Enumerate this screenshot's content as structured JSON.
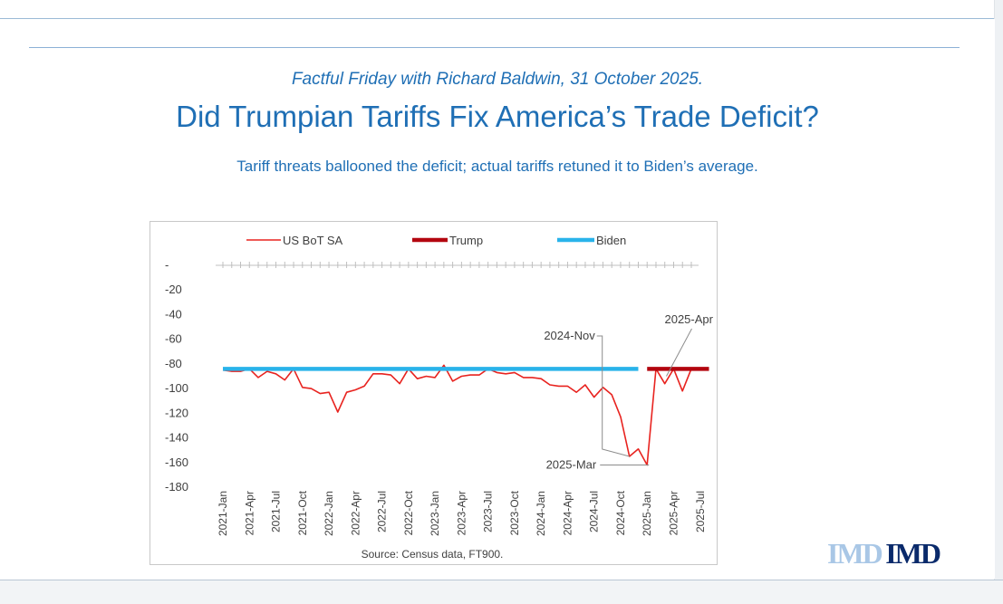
{
  "header": {
    "subtitle": "Factful Friday with Richard Baldwin, 31 October 2025.",
    "title": "Did Trumpian Tariffs Fix America’s Trade Deficit?",
    "tagline": "Tariff threats ballooned the deficit; actual tariffs retuned it to Biden’s average."
  },
  "logo": {
    "text_light": "IMD",
    "text_dark": "IMD",
    "color_light": "#a9c7e6",
    "color_dark": "#0a2a6b"
  },
  "chart_data": {
    "type": "line",
    "title": "",
    "xlabel": "",
    "ylabel": "",
    "ylim": [
      -180,
      0
    ],
    "yticks": [
      "-",
      "-20",
      "-40",
      "-60",
      "-80",
      "-100",
      "-120",
      "-140",
      "-160",
      "-180"
    ],
    "x_tick_labels": [
      "2021-Jan",
      "2021-Apr",
      "2021-Jul",
      "2021-Oct",
      "2022-Jan",
      "2022-Apr",
      "2022-Jul",
      "2022-Oct",
      "2023-Jan",
      "2023-Apr",
      "2023-Jul",
      "2023-Oct",
      "2024-Jan",
      "2024-Apr",
      "2024-Jul",
      "2024-Oct",
      "2025-Jan",
      "2025-Apr",
      "2025-Jul"
    ],
    "source": "Source: Census data, FT900.",
    "series": [
      {
        "name": "US BoT SA",
        "color": "#e8231f",
        "values": [
          -85,
          -86,
          -86,
          -84,
          -91,
          -86,
          -88,
          -93,
          -84,
          -99,
          -100,
          -104,
          -103,
          -119,
          -103,
          -101,
          -98,
          -88,
          -88,
          -89,
          -96,
          -84,
          -92,
          -90,
          -91,
          -81,
          -94,
          -90,
          -89,
          -89,
          -84,
          -87,
          -88,
          -87,
          -91,
          -91,
          -92,
          -97,
          -98,
          -98,
          -103,
          -97,
          -107,
          -99,
          -105,
          -123,
          -155,
          -149,
          -162,
          -84,
          -96,
          -84,
          -102,
          -84
        ]
      },
      {
        "name": "Trump",
        "color": "#b3060f",
        "start_index": 48,
        "end_index": 55,
        "value": -84
      },
      {
        "name": "Biden",
        "color": "#29b3ea",
        "start_index": 0,
        "end_index": 47,
        "value": -84
      }
    ],
    "annotations": [
      {
        "label": "2024-Nov",
        "index": 46
      },
      {
        "label": "2025-Apr",
        "index": 51
      },
      {
        "label": "2025-Mar",
        "index": 50
      }
    ]
  }
}
